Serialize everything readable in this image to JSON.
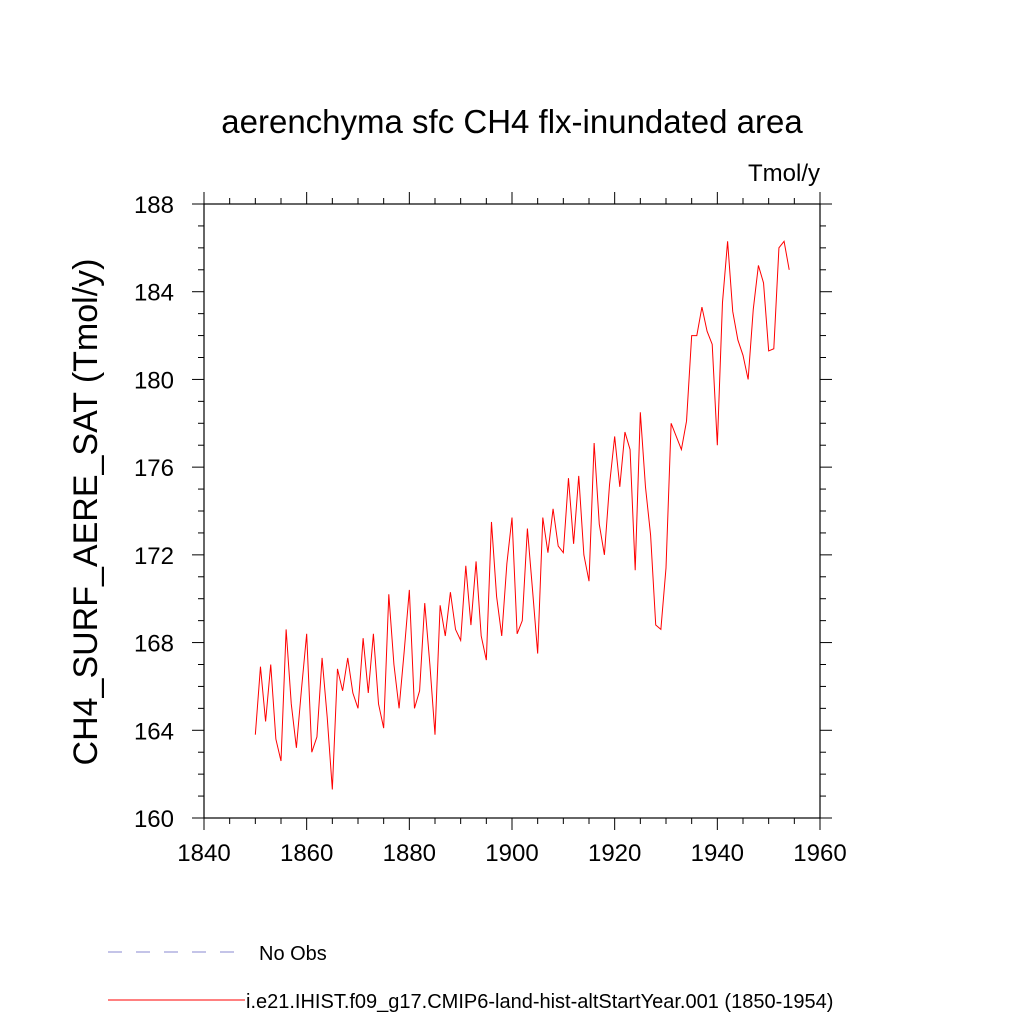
{
  "chart_data": {
    "type": "line",
    "title": "aerenchyma sfc CH4 flx-inundated area",
    "units_label": "Tmol/y",
    "ylabel": "CH4_SURF_AERE_SAT  (Tmol/y)",
    "xlabel": "",
    "xlim": [
      1840,
      1960
    ],
    "ylim": [
      160,
      188
    ],
    "x_ticks": [
      "1840",
      "1860",
      "1880",
      "1900",
      "1920",
      "1940",
      "1960"
    ],
    "y_ticks": [
      "160",
      "164",
      "168",
      "172",
      "176",
      "180",
      "184",
      "188"
    ],
    "x_tick_values": [
      1840,
      1860,
      1880,
      1900,
      1920,
      1940,
      1960
    ],
    "y_tick_values": [
      160,
      164,
      168,
      172,
      176,
      180,
      184,
      188
    ],
    "grid": false,
    "legend_position": "bottom-left",
    "series": [
      {
        "name": "i.e21.IHIST.f09_g17.CMIP6-land-hist-altStartYear.001 (1850-1954)",
        "color": "#ff0000",
        "x": [
          1850,
          1851,
          1852,
          1853,
          1854,
          1855,
          1856,
          1857,
          1858,
          1859,
          1860,
          1861,
          1862,
          1863,
          1864,
          1865,
          1866,
          1867,
          1868,
          1869,
          1870,
          1871,
          1872,
          1873,
          1874,
          1875,
          1876,
          1877,
          1878,
          1879,
          1880,
          1881,
          1882,
          1883,
          1884,
          1885,
          1886,
          1887,
          1888,
          1889,
          1890,
          1891,
          1892,
          1893,
          1894,
          1895,
          1896,
          1897,
          1898,
          1899,
          1900,
          1901,
          1902,
          1903,
          1904,
          1905,
          1906,
          1907,
          1908,
          1909,
          1910,
          1911,
          1912,
          1913,
          1914,
          1915,
          1916,
          1917,
          1918,
          1919,
          1920,
          1921,
          1922,
          1923,
          1924,
          1925,
          1926,
          1927,
          1928,
          1929,
          1930,
          1931,
          1932,
          1933,
          1934,
          1935,
          1936,
          1937,
          1938,
          1939,
          1940,
          1941,
          1942,
          1943,
          1944,
          1945,
          1946,
          1947,
          1948,
          1949,
          1950,
          1951,
          1952,
          1953,
          1954
        ],
        "values": [
          163.8,
          166.9,
          164.4,
          167.0,
          163.6,
          162.6,
          168.6,
          165.2,
          163.2,
          165.9,
          168.4,
          163.0,
          163.7,
          167.3,
          164.6,
          161.3,
          166.8,
          165.8,
          167.3,
          165.7,
          165.0,
          168.2,
          165.7,
          168.4,
          165.2,
          164.1,
          170.2,
          167.0,
          165.0,
          167.6,
          170.4,
          165.0,
          165.8,
          169.8,
          167.0,
          163.8,
          169.7,
          168.3,
          170.3,
          168.6,
          168.1,
          171.5,
          168.8,
          171.7,
          168.3,
          167.2,
          173.5,
          170.1,
          168.3,
          171.6,
          173.7,
          168.4,
          169.0,
          173.2,
          170.4,
          167.5,
          173.7,
          172.1,
          174.1,
          172.4,
          172.1,
          175.5,
          172.5,
          175.6,
          172.0,
          170.8,
          177.1,
          173.4,
          172.0,
          175.2,
          177.4,
          175.1,
          177.6,
          176.8,
          171.3,
          178.5,
          175.1,
          172.9,
          168.8,
          168.6,
          171.4,
          178.0,
          177.4,
          176.8,
          178.1,
          182.0,
          182.0,
          183.3,
          182.2,
          181.6,
          177.0,
          183.5,
          186.3,
          183.1,
          181.8,
          181.1,
          180.0,
          183.2,
          185.2,
          184.4,
          181.3,
          181.4,
          186.0,
          186.3,
          185.0
        ]
      }
    ],
    "legend": [
      {
        "label": "No Obs",
        "style": "dashed",
        "color": "#8a8ad0"
      },
      {
        "label": "i.e21.IHIST.f09_g17.CMIP6-land-hist-altStartYear.001 (1850-1954)",
        "style": "solid",
        "color": "#ff0000"
      }
    ]
  }
}
